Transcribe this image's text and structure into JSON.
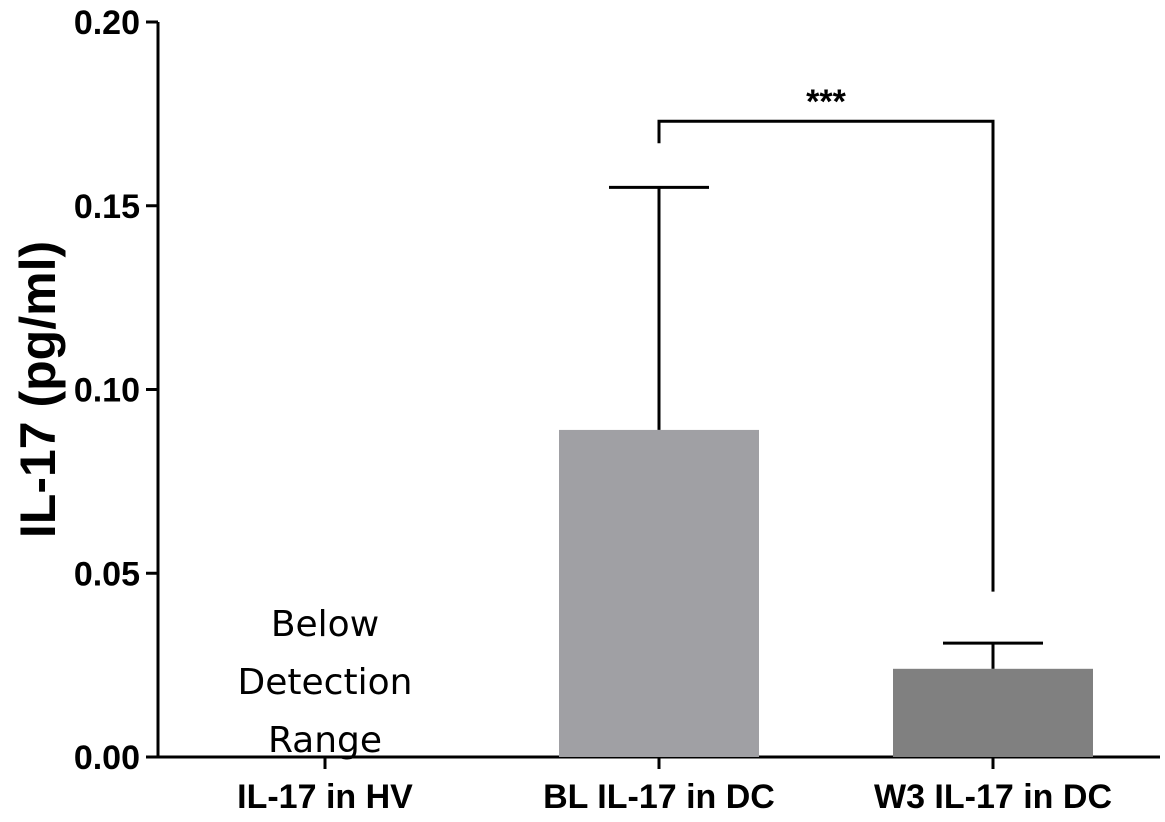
{
  "chart_data": {
    "type": "bar",
    "categories": [
      "IL-17 in HV",
      "BL IL-17 in DC",
      "W3 IL-17 in DC"
    ],
    "values": [
      null,
      0.089,
      0.024
    ],
    "error_upper": [
      null,
      0.155,
      0.031
    ],
    "bar_colors": [
      "#a0a0a4",
      "#a0a0a4",
      "#808080"
    ],
    "ylabel": "IL-17 (pg/ml)",
    "xlabel": "",
    "title": "",
    "ylim": [
      0,
      0.2
    ],
    "yticks": [
      0.0,
      0.05,
      0.1,
      0.15,
      0.2
    ],
    "ytick_labels": [
      "0.00",
      "0.05",
      "0.10",
      "0.15",
      "0.20"
    ],
    "annotations": {
      "below_detection_lines": [
        "Below",
        "Detection",
        "Range"
      ],
      "significance": {
        "label": "***",
        "from_category": 1,
        "to_category": 2,
        "bracket_y": 0.173,
        "left_drop_to": 0.167,
        "right_drop_to": 0.045
      }
    },
    "grid": false,
    "legend": "none"
  }
}
